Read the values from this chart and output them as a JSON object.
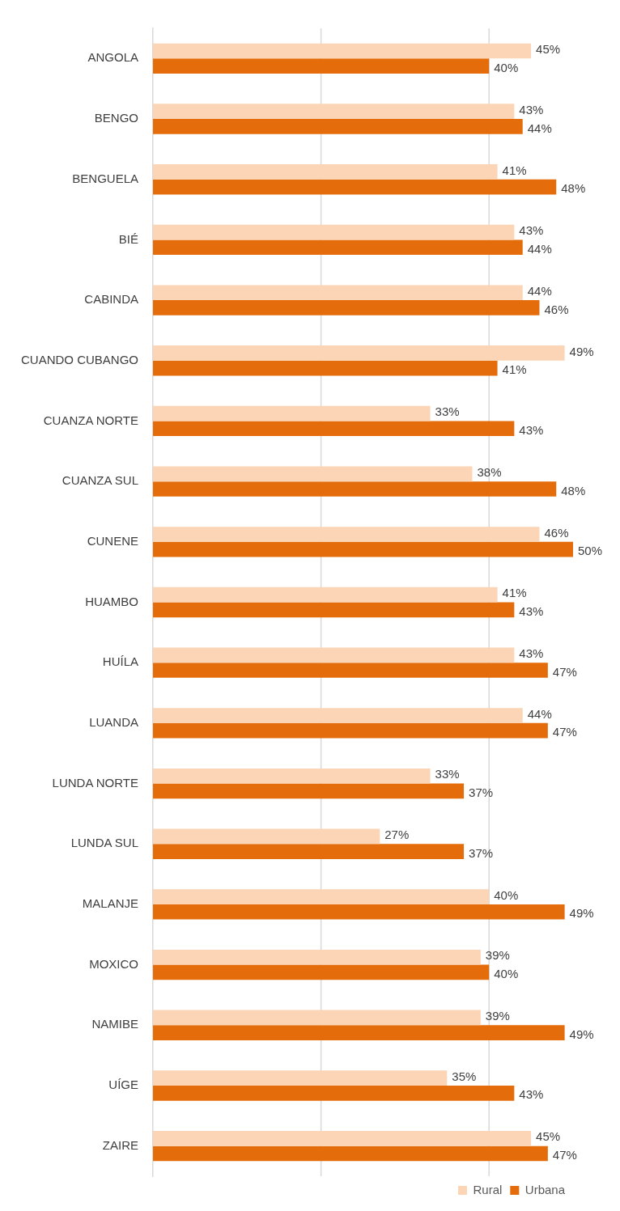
{
  "chart_data": {
    "type": "bar",
    "orientation": "horizontal",
    "categories": [
      "ANGOLA",
      "BENGO",
      "BENGUELA",
      "BIÉ",
      "CABINDA",
      "CUANDO CUBANGO",
      "CUANZA NORTE",
      "CUANZA SUL",
      "CUNENE",
      "HUAMBO",
      "HUÍLA",
      "LUANDA",
      "LUNDA NORTE",
      "LUNDA SUL",
      "MALANJE",
      "MOXICO",
      "NAMIBE",
      "UÍGE",
      "ZAIRE"
    ],
    "series": [
      {
        "name": "Rural",
        "color": "#fbd5b5",
        "values": [
          45,
          43,
          41,
          43,
          44,
          49,
          33,
          38,
          46,
          41,
          43,
          44,
          33,
          27,
          40,
          39,
          39,
          35,
          45
        ],
        "value_labels": [
          "45%",
          "43%",
          "41%",
          "43%",
          "44%",
          "49%",
          "33%",
          "38%",
          "46%",
          "41%",
          "43%",
          "44%",
          "33%",
          "27%",
          "40%",
          "39%",
          "39%",
          "35%",
          "45%"
        ]
      },
      {
        "name": "Urbana",
        "color": "#e46c0a",
        "values": [
          40,
          44,
          48,
          44,
          46,
          41,
          43,
          48,
          50,
          43,
          47,
          47,
          37,
          37,
          49,
          40,
          49,
          43,
          47
        ],
        "value_labels": [
          "40%",
          "44%",
          "48%",
          "44%",
          "46%",
          "41%",
          "43%",
          "48%",
          "50%",
          "43%",
          "47%",
          "47%",
          "37%",
          "37%",
          "49%",
          "40%",
          "49%",
          "43%",
          "47%"
        ]
      }
    ],
    "ref_lines": [
      {
        "axis": "x",
        "value": 20,
        "color": "#d9d9d9"
      },
      {
        "axis": "x",
        "value": 40,
        "color": "#d9d9d9"
      }
    ],
    "tick_labels": "y",
    "legend": "bottom right"
  }
}
